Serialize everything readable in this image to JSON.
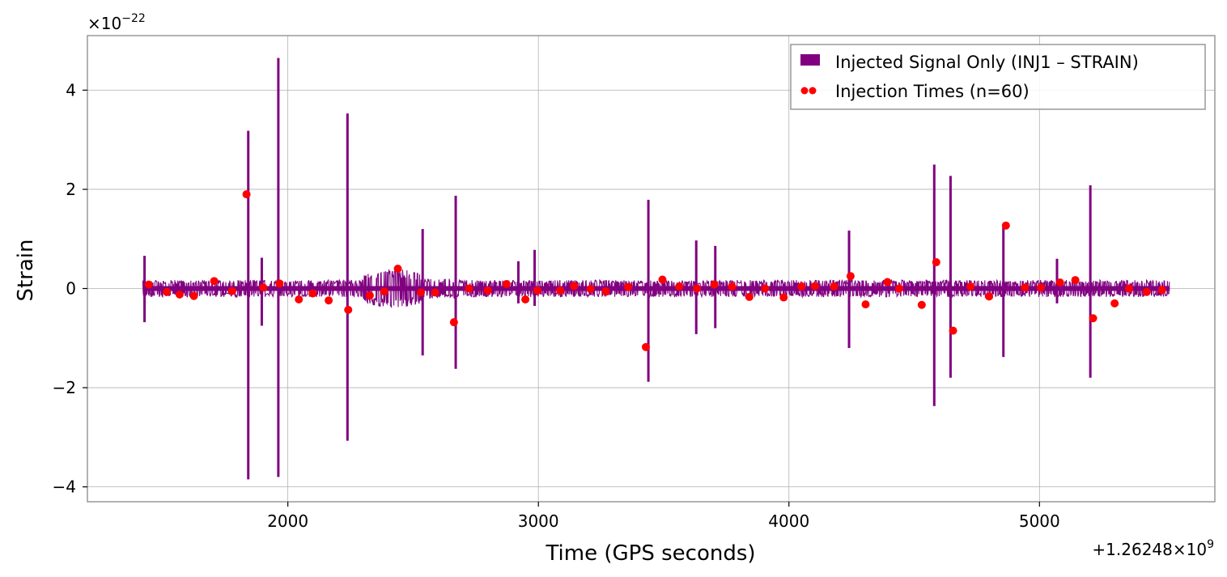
{
  "chart_data": {
    "type": "line",
    "xlabel": "Time (GPS seconds)",
    "ylabel": "Strain",
    "x_offset_label": "+1.26248×10",
    "x_offset_exponent": "9",
    "y_scale_label": "×10",
    "y_scale_exponent": "−22",
    "xlim": [
      1200,
      5700
    ],
    "ylim": [
      -4.3,
      5.1
    ],
    "grid": true,
    "legend_position": "top-right",
    "x_ticks": [
      {
        "value": 2000,
        "label": "2000"
      },
      {
        "value": 3000,
        "label": "3000"
      },
      {
        "value": 4000,
        "label": "4000"
      },
      {
        "value": 5000,
        "label": "5000"
      }
    ],
    "y_ticks": [
      {
        "value": 4,
        "label": "4"
      },
      {
        "value": 2,
        "label": "2"
      },
      {
        "value": 0,
        "label": "0"
      },
      {
        "value": -2,
        "label": "−2"
      },
      {
        "value": -4,
        "label": "−4"
      }
    ],
    "series": [
      {
        "name": "Injected Signal Only (INJ1 – STRAIN)",
        "kind": "signal",
        "color": "#800080",
        "x_start": 1421,
        "x_end": 5520,
        "spikes": [
          {
            "x": 1842,
            "max": 3.18,
            "min": -3.85
          },
          {
            "x": 1962,
            "max": 4.65,
            "min": -3.8
          },
          {
            "x": 2238,
            "max": 3.53,
            "min": -3.07
          },
          {
            "x": 2670,
            "max": 1.87,
            "min": -1.62
          },
          {
            "x": 2538,
            "max": 1.2,
            "min": -1.35
          },
          {
            "x": 3439,
            "max": 1.79,
            "min": -1.88
          },
          {
            "x": 3630,
            "max": 0.97,
            "min": -0.92
          },
          {
            "x": 3706,
            "max": 0.86,
            "min": -0.8
          },
          {
            "x": 4240,
            "max": 1.17,
            "min": -1.2
          },
          {
            "x": 4580,
            "max": 2.5,
            "min": -2.37
          },
          {
            "x": 4645,
            "max": 2.27,
            "min": -1.8
          },
          {
            "x": 4856,
            "max": 1.3,
            "min": -1.38
          },
          {
            "x": 5203,
            "max": 2.08,
            "min": -1.8
          },
          {
            "x": 1896,
            "max": 0.62,
            "min": -0.75
          },
          {
            "x": 2985,
            "max": 0.78,
            "min": -0.35
          },
          {
            "x": 1428,
            "max": 0.66,
            "min": -0.68
          },
          {
            "x": 2920,
            "max": 0.55,
            "min": -0.3
          },
          {
            "x": 5070,
            "max": 0.6,
            "min": -0.3
          }
        ]
      },
      {
        "name": "Injection Times (n=60)",
        "kind": "markers",
        "color": "#ff0000",
        "points": [
          {
            "x": 1445,
            "y": 0.08
          },
          {
            "x": 1517,
            "y": -0.07
          },
          {
            "x": 1568,
            "y": -0.12
          },
          {
            "x": 1625,
            "y": -0.15
          },
          {
            "x": 1706,
            "y": 0.15
          },
          {
            "x": 1778,
            "y": -0.05
          },
          {
            "x": 1835,
            "y": 1.9
          },
          {
            "x": 1902,
            "y": 0.02
          },
          {
            "x": 1967,
            "y": 0.1
          },
          {
            "x": 2044,
            "y": -0.22
          },
          {
            "x": 2099,
            "y": -0.1
          },
          {
            "x": 2163,
            "y": -0.24
          },
          {
            "x": 2241,
            "y": -0.43
          },
          {
            "x": 2327,
            "y": -0.14
          },
          {
            "x": 2385,
            "y": -0.06
          },
          {
            "x": 2439,
            "y": 0.4
          },
          {
            "x": 2531,
            "y": -0.08
          },
          {
            "x": 2588,
            "y": -0.08
          },
          {
            "x": 2663,
            "y": -0.68
          },
          {
            "x": 2723,
            "y": 0.0
          },
          {
            "x": 2798,
            "y": -0.04
          },
          {
            "x": 2873,
            "y": 0.09
          },
          {
            "x": 2948,
            "y": -0.22
          },
          {
            "x": 2996,
            "y": -0.04
          },
          {
            "x": 3087,
            "y": -0.04
          },
          {
            "x": 3142,
            "y": 0.05
          },
          {
            "x": 3208,
            "y": -0.01
          },
          {
            "x": 3269,
            "y": -0.06
          },
          {
            "x": 3358,
            "y": 0.03
          },
          {
            "x": 3429,
            "y": -1.18
          },
          {
            "x": 3495,
            "y": 0.18
          },
          {
            "x": 3562,
            "y": 0.04
          },
          {
            "x": 3633,
            "y": 0.0
          },
          {
            "x": 3702,
            "y": 0.08
          },
          {
            "x": 3773,
            "y": 0.04
          },
          {
            "x": 3842,
            "y": -0.17
          },
          {
            "x": 3905,
            "y": 0.0
          },
          {
            "x": 3979,
            "y": -0.18
          },
          {
            "x": 4050,
            "y": 0.04
          },
          {
            "x": 4104,
            "y": 0.05
          },
          {
            "x": 4180,
            "y": 0.04
          },
          {
            "x": 4246,
            "y": 0.25
          },
          {
            "x": 4306,
            "y": -0.32
          },
          {
            "x": 4393,
            "y": 0.13
          },
          {
            "x": 4440,
            "y": 0.0
          },
          {
            "x": 4530,
            "y": -0.33
          },
          {
            "x": 4588,
            "y": 0.53
          },
          {
            "x": 4655,
            "y": -0.85
          },
          {
            "x": 4725,
            "y": 0.04
          },
          {
            "x": 4799,
            "y": -0.16
          },
          {
            "x": 4866,
            "y": 1.27
          },
          {
            "x": 4942,
            "y": 0.02
          },
          {
            "x": 5006,
            "y": 0.02
          },
          {
            "x": 5082,
            "y": 0.12
          },
          {
            "x": 5143,
            "y": 0.17
          },
          {
            "x": 5214,
            "y": -0.6
          },
          {
            "x": 5300,
            "y": -0.3
          },
          {
            "x": 5357,
            "y": 0.0
          },
          {
            "x": 5428,
            "y": -0.07
          },
          {
            "x": 5489,
            "y": -0.03
          }
        ]
      }
    ]
  }
}
